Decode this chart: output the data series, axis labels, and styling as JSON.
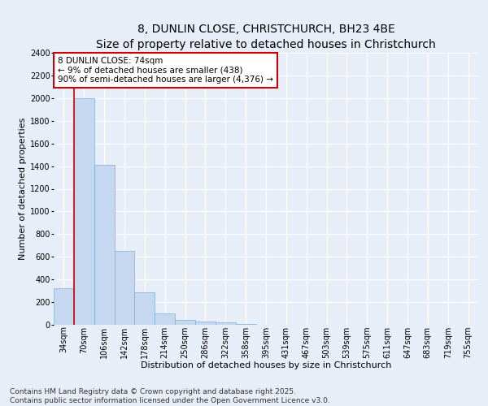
{
  "title_line1": "8, DUNLIN CLOSE, CHRISTCHURCH, BH23 4BE",
  "title_line2": "Size of property relative to detached houses in Christchurch",
  "xlabel": "Distribution of detached houses by size in Christchurch",
  "ylabel": "Number of detached properties",
  "categories": [
    "34sqm",
    "70sqm",
    "106sqm",
    "142sqm",
    "178sqm",
    "214sqm",
    "250sqm",
    "286sqm",
    "322sqm",
    "358sqm",
    "395sqm",
    "431sqm",
    "467sqm",
    "503sqm",
    "539sqm",
    "575sqm",
    "611sqm",
    "647sqm",
    "683sqm",
    "719sqm",
    "755sqm"
  ],
  "values": [
    320,
    2000,
    1410,
    650,
    285,
    100,
    45,
    30,
    20,
    10,
    0,
    0,
    0,
    0,
    0,
    0,
    0,
    0,
    0,
    0,
    0
  ],
  "bar_color": "#c5d8f0",
  "bar_edge_color": "#7bafd4",
  "vline_color": "#cc0000",
  "annotation_text": "8 DUNLIN CLOSE: 74sqm\n← 9% of detached houses are smaller (438)\n90% of semi-detached houses are larger (4,376) →",
  "annotation_box_color": "#ffffff",
  "annotation_box_edge_color": "#cc0000",
  "ylim": [
    0,
    2400
  ],
  "yticks": [
    0,
    200,
    400,
    600,
    800,
    1000,
    1200,
    1400,
    1600,
    1800,
    2000,
    2200,
    2400
  ],
  "footer_line1": "Contains HM Land Registry data © Crown copyright and database right 2025.",
  "footer_line2": "Contains public sector information licensed under the Open Government Licence v3.0.",
  "bg_color": "#e8eef8",
  "plot_bg_color": "#e8eef8",
  "grid_color": "#ffffff",
  "title_fontsize": 10,
  "subtitle_fontsize": 9,
  "axis_label_fontsize": 8,
  "tick_fontsize": 7,
  "annotation_fontsize": 7.5,
  "footer_fontsize": 6.5
}
